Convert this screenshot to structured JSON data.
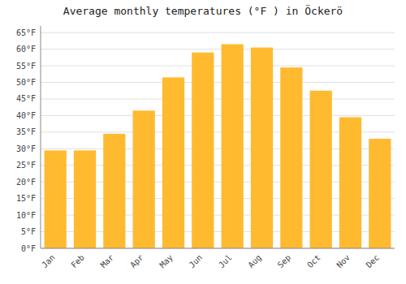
{
  "chart_data": {
    "type": "bar",
    "title": "Average monthly temperatures (°F ) in Öckerö",
    "categories": [
      "Jan",
      "Feb",
      "Mar",
      "Apr",
      "May",
      "Jun",
      "Jul",
      "Aug",
      "Sep",
      "Oct",
      "Nov",
      "Dec"
    ],
    "values": [
      29.5,
      29.5,
      34.5,
      41.5,
      51.5,
      59.0,
      61.5,
      60.5,
      54.5,
      47.5,
      39.5,
      33.0
    ],
    "color": "#FFBA30",
    "ylim": [
      0,
      67
    ],
    "yticks": [
      {
        "value": 0,
        "label": "0°F"
      },
      {
        "value": 5,
        "label": "5°F"
      },
      {
        "value": 10,
        "label": "10°F"
      },
      {
        "value": 15,
        "label": "15°F"
      },
      {
        "value": 20,
        "label": "20°F"
      },
      {
        "value": 25,
        "label": "25°F"
      },
      {
        "value": 30,
        "label": "30°F"
      },
      {
        "value": 35,
        "label": "35°F"
      },
      {
        "value": 40,
        "label": "40°F"
      },
      {
        "value": 45,
        "label": "45°F"
      },
      {
        "value": 50,
        "label": "50°F"
      },
      {
        "value": 55,
        "label": "55°F"
      },
      {
        "value": 60,
        "label": "60°F"
      },
      {
        "value": 65,
        "label": "65°F"
      }
    ],
    "grid": true
  }
}
